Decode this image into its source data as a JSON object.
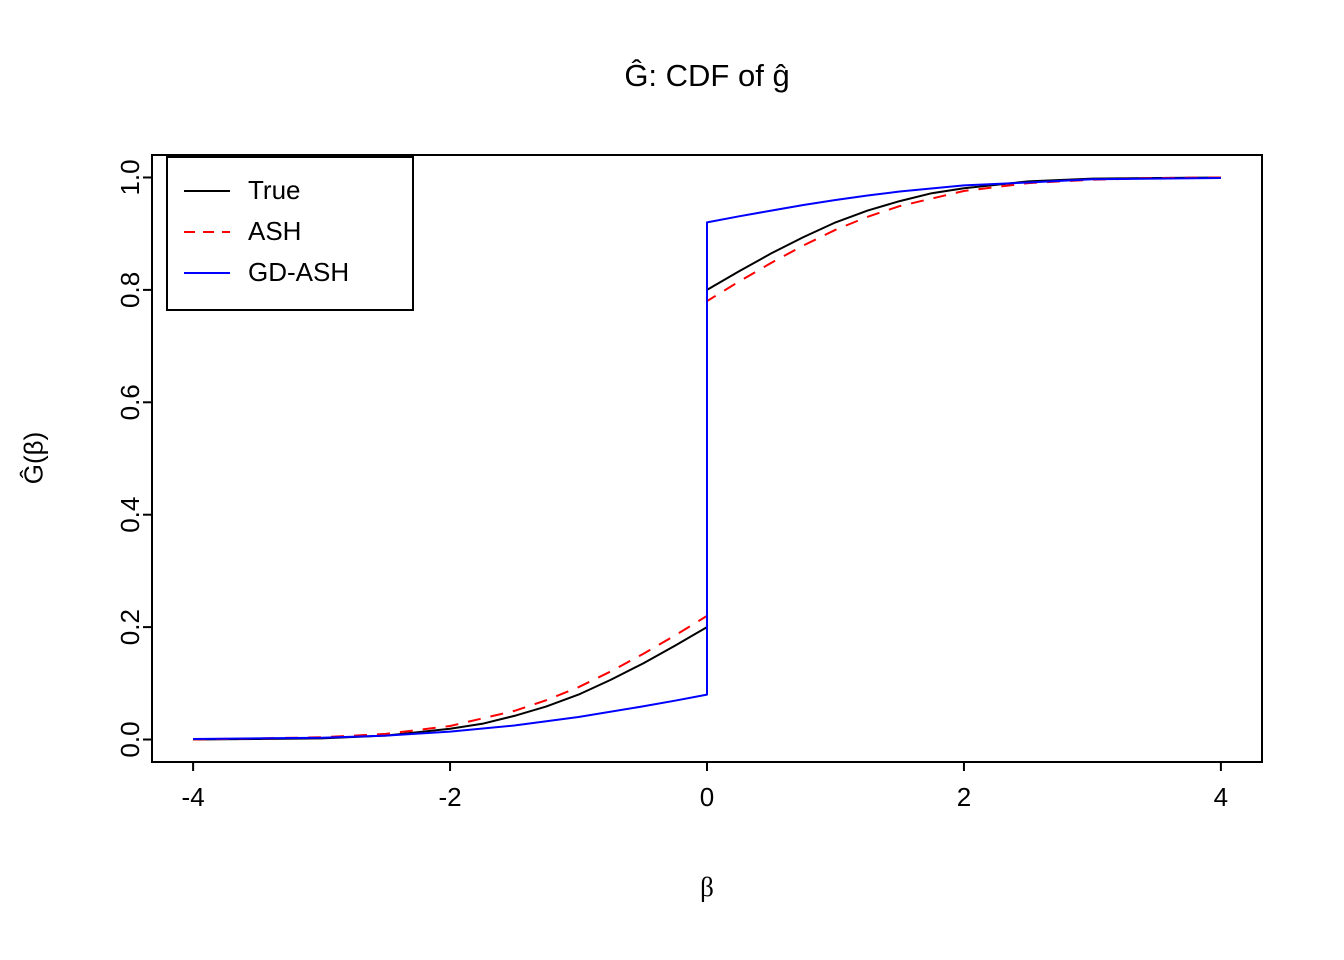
{
  "title": "Ĝ: CDF of ĝ",
  "chart_data": {
    "type": "line",
    "title": "Ĝ: CDF of ĝ",
    "xlabel": "β",
    "ylabel": "Ĝ(β)",
    "xlim": [
      -4,
      4
    ],
    "ylim": [
      0,
      1
    ],
    "x_ticks": [
      -4,
      -2,
      0,
      2,
      4
    ],
    "x_tick_labels": [
      "-4",
      "-2",
      "0",
      "2",
      "4"
    ],
    "y_ticks": [
      0,
      0.2,
      0.4,
      0.6,
      0.8,
      1
    ],
    "y_tick_labels": [
      "0.0",
      "0.2",
      "0.4",
      "0.6",
      "0.8",
      "1.0"
    ],
    "grid": false,
    "legend_position": "top-left",
    "series": [
      {
        "name": "True",
        "color": "#000000",
        "dash": "solid",
        "x": [
          -4,
          -3.5,
          -3,
          -2.5,
          -2,
          -1.75,
          -1.5,
          -1.25,
          -1,
          -0.75,
          -0.5,
          -0.25,
          0,
          0,
          0.25,
          0.5,
          0.75,
          1,
          1.25,
          1.5,
          1.75,
          2,
          2.5,
          3,
          3.5,
          4
        ],
        "y": [
          0.0,
          0.001,
          0.002,
          0.007,
          0.019,
          0.028,
          0.042,
          0.059,
          0.08,
          0.106,
          0.135,
          0.167,
          0.2,
          0.8,
          0.833,
          0.865,
          0.894,
          0.92,
          0.941,
          0.958,
          0.972,
          0.981,
          0.993,
          0.998,
          0.999,
          1.0
        ]
      },
      {
        "name": "ASH",
        "color": "#ff0000",
        "dash": "dashed",
        "x": [
          -4,
          -3,
          -2.5,
          -2,
          -1.5,
          -1.25,
          -1,
          -0.75,
          -0.5,
          -0.25,
          0,
          0,
          0.25,
          0.5,
          0.75,
          1,
          1.25,
          1.5,
          2,
          2.5,
          3,
          3.5,
          4
        ],
        "y": [
          0.0,
          0.004,
          0.01,
          0.024,
          0.051,
          0.07,
          0.093,
          0.121,
          0.152,
          0.185,
          0.22,
          0.78,
          0.815,
          0.848,
          0.879,
          0.907,
          0.93,
          0.949,
          0.976,
          0.99,
          0.996,
          0.999,
          1.0
        ]
      },
      {
        "name": "GD-ASH",
        "color": "#0000ff",
        "dash": "solid",
        "x": [
          -4,
          -3,
          -2.5,
          -2,
          -1.5,
          -1,
          -0.5,
          -0.25,
          0,
          0,
          0.25,
          0.5,
          0.75,
          1,
          1.25,
          1.5,
          2,
          2.5,
          3,
          3.5,
          4
        ],
        "y": [
          0.001,
          0.003,
          0.007,
          0.014,
          0.025,
          0.04,
          0.059,
          0.069,
          0.08,
          0.92,
          0.931,
          0.941,
          0.951,
          0.96,
          0.968,
          0.975,
          0.986,
          0.991,
          0.997,
          0.998,
          0.999
        ]
      }
    ]
  }
}
